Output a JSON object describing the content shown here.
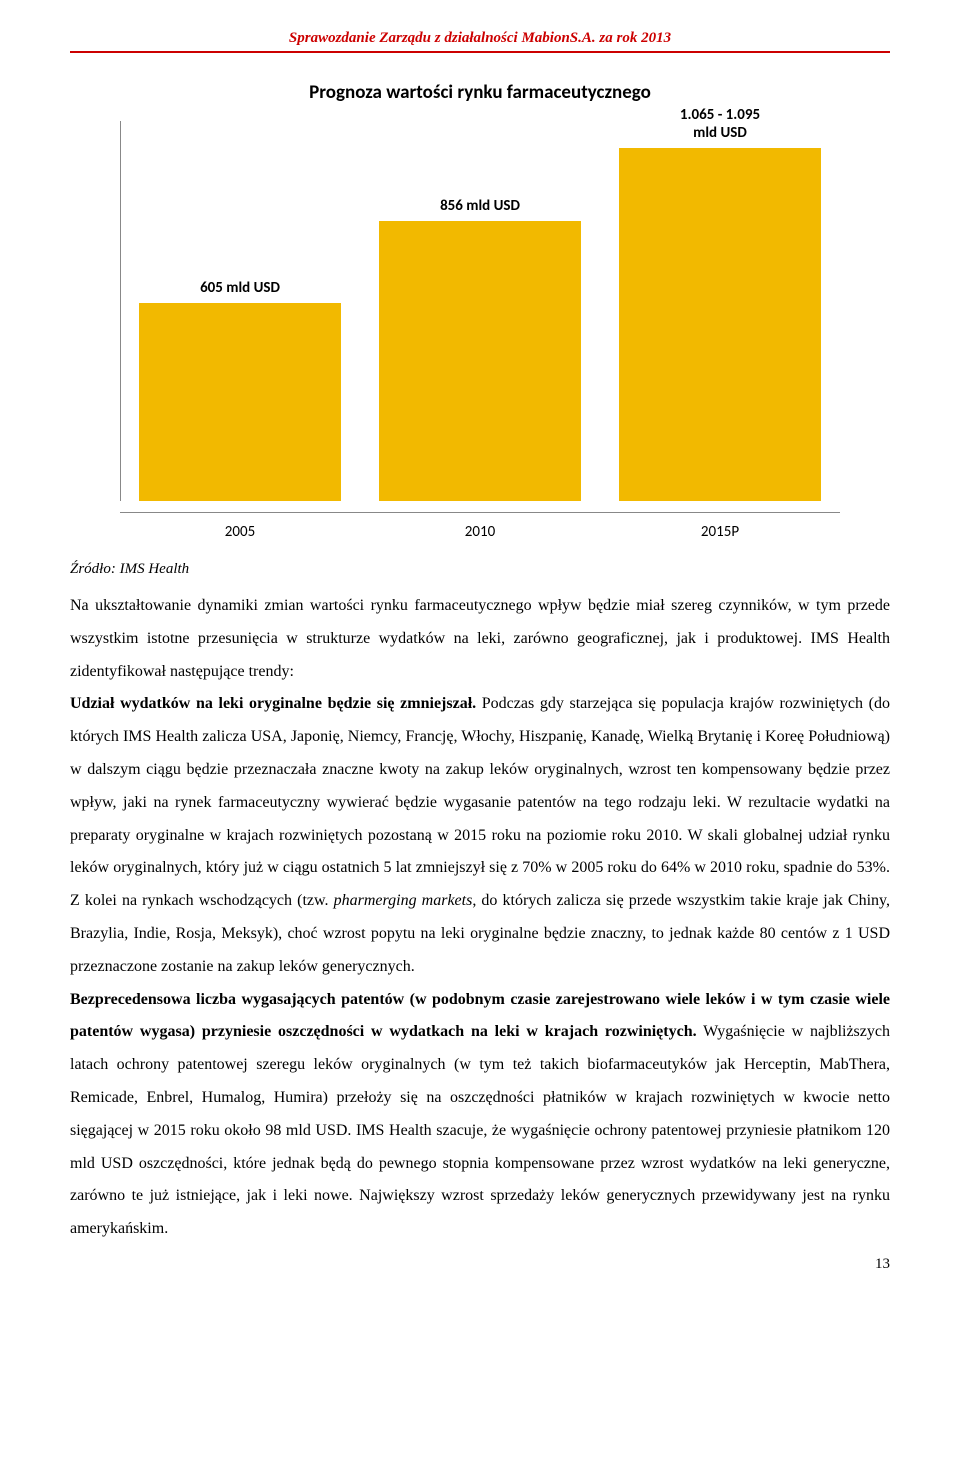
{
  "header": "Sprawozdanie Zarządu z działalności MabionS.A. za rok 2013",
  "chart": {
    "type": "bar",
    "title": "Prognoza wartości rynku farmaceutycznego",
    "categories": [
      "2005",
      "2010",
      "2015P"
    ],
    "value_labels": [
      "605 mld USD",
      "856 mld USD",
      "1.065 - 1.095\nmld USD"
    ],
    "values": [
      605,
      856,
      1080
    ],
    "ylim_max": 1100,
    "bar_color": "#f2b900",
    "axis_color": "#888888",
    "title_fontsize": 19,
    "label_fontsize": 15,
    "xlabel_fontsize": 15,
    "background_color": "#ffffff"
  },
  "source_label": "Źródło: IMS Health",
  "para1a": "Na ukształtowanie dynamiki zmian wartości rynku farmaceutycznego wpływ będzie miał szereg czynników, w tym przede wszystkim istotne przesunięcia w strukturze wydatków na leki, zarówno geograficznej, jak i produktowej. IMS Health zidentyfikował następujące trendy:",
  "para1b_bold": "Udział wydatków na leki oryginalne będzie się zmniejszał.",
  "para1c": " Podczas gdy starzejąca się populacja krajów rozwiniętych (do których IMS Health zalicza USA, Japonię, Niemcy, Francję, Włochy, Hiszpanię, Kanadę, Wielką Brytanię i Koreę Południową) w dalszym ciągu będzie przeznaczała znaczne kwoty na zakup leków oryginalnych, wzrost ten kompensowany będzie przez wpływ, jaki na rynek farmaceutyczny wywierać będzie wygasanie patentów na tego rodzaju leki. W rezultacie wydatki na preparaty oryginalne w krajach rozwiniętych pozostaną w 2015 roku na poziomie roku 2010. W skali globalnej udział rynku leków oryginalnych, który już w ciągu ostatnich 5 lat zmniejszył się z 70% w 2005 roku do 64% w 2010 roku, spadnie do 53%. Z kolei na rynkach wschodzących (tzw. ",
  "para1c_italic": "pharmerging markets",
  "para1c2": ", do których zalicza się przede wszystkim takie kraje jak Chiny, Brazylia, Indie, Rosja, Meksyk), choć wzrost popytu na leki oryginalne będzie znaczny, to jednak każde 80 centów z 1 USD przeznaczone zostanie na zakup leków generycznych.",
  "para2_bold": "Bezprecedensowa liczba wygasających patentów (w podobnym czasie zarejestrowano wiele leków i w tym czasie wiele patentów wygasa) przyniesie oszczędności w wydatkach na leki w krajach rozwiniętych.",
  "para2b": " Wygaśnięcie w najbliższych latach ochrony patentowej szeregu leków oryginalnych (w tym też takich biofarmaceutyków jak Herceptin, MabThera, Remicade, Enbrel, Humalog, Humira) przełoży się na oszczędności płatników w krajach rozwiniętych w kwocie netto sięgającej w 2015 roku około 98 mld USD. IMS Health szacuje, że wygaśnięcie ochrony patentowej przyniesie płatnikom 120 mld USD oszczędności, które jednak będą do pewnego stopnia kompensowane przez wzrost wydatków na leki generyczne, zarówno te już istniejące, jak i leki nowe. Największy wzrost sprzedaży leków generycznych przewidywany jest na rynku amerykańskim.",
  "page_number": "13"
}
